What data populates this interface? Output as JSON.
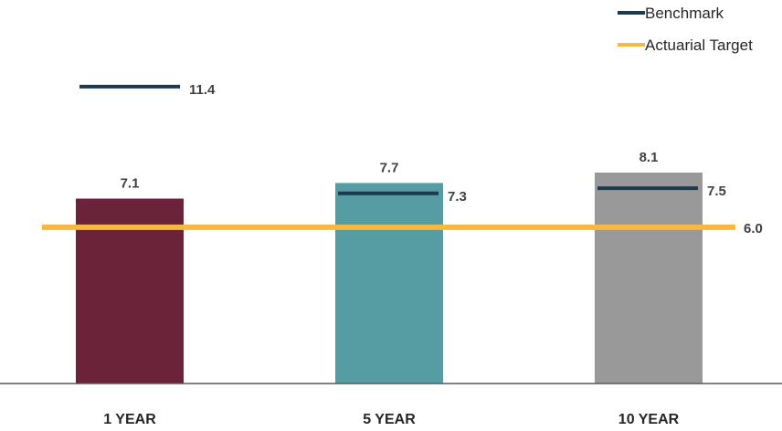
{
  "chart_data": {
    "type": "bar",
    "categories": [
      "1 YEAR",
      "5 YEAR",
      "10 YEAR"
    ],
    "series": [
      {
        "values": [
          7.1,
          7.7,
          8.1
        ],
        "colors": [
          "#6b2339",
          "#559da3",
          "#999999"
        ]
      },
      {
        "name": "Benchmark",
        "type": "marker",
        "values": [
          11.4,
          7.3,
          7.5
        ],
        "color": "#1b3a4f"
      },
      {
        "name": "Actuarial Target",
        "type": "line",
        "values": [
          6.0,
          6.0,
          6.0
        ],
        "color": "#f5b841"
      }
    ],
    "target_label": "6.0",
    "legend": {
      "position": "top-right",
      "entries": [
        "Benchmark",
        "Actuarial Target"
      ]
    },
    "ylim": [
      0,
      14.2
    ],
    "grid": false
  }
}
